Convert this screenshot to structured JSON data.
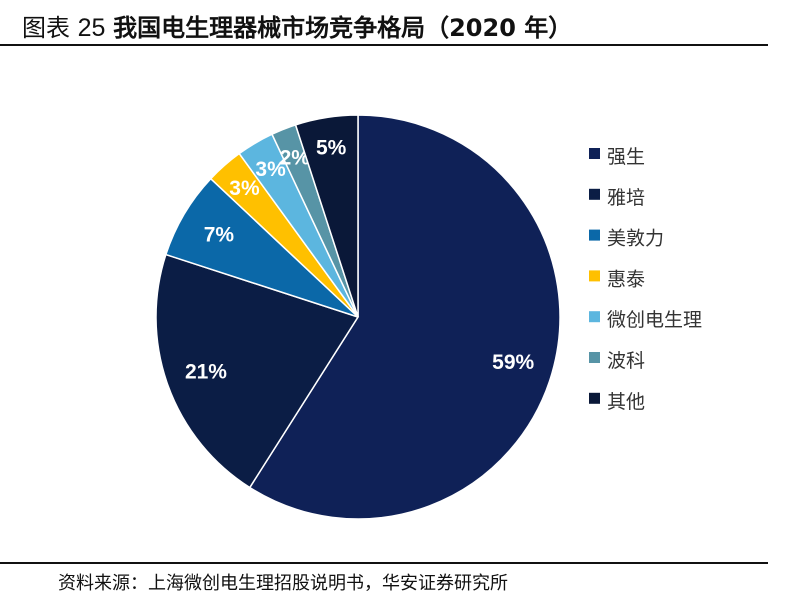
{
  "title": {
    "prefix": "图表",
    "number": "25",
    "text": "我国电生理器械市场竞争格局（2020 年）"
  },
  "source": "资料来源：上海微创电生理招股说明书，华安证券研究所",
  "chart_data": {
    "type": "pie",
    "title": "我国电生理器械市场竞争格局（2020 年）",
    "legend_position": "right",
    "slices": [
      {
        "name": "强生",
        "value": 59,
        "label": "59%",
        "color": "#0f2157"
      },
      {
        "name": "雅培",
        "value": 21,
        "label": "21%",
        "color": "#0b1d45"
      },
      {
        "name": "美敦力",
        "value": 7,
        "label": "7%",
        "color": "#0b68a8"
      },
      {
        "name": "惠泰",
        "value": 3,
        "label": "3%",
        "color": "#ffc000"
      },
      {
        "name": "微创电生理",
        "value": 3,
        "label": "3%",
        "color": "#5cb6df"
      },
      {
        "name": "波科",
        "value": 2,
        "label": "2%",
        "color": "#5794a6"
      },
      {
        "name": "其他",
        "value": 5,
        "label": "5%",
        "color": "#0a1838"
      }
    ]
  }
}
